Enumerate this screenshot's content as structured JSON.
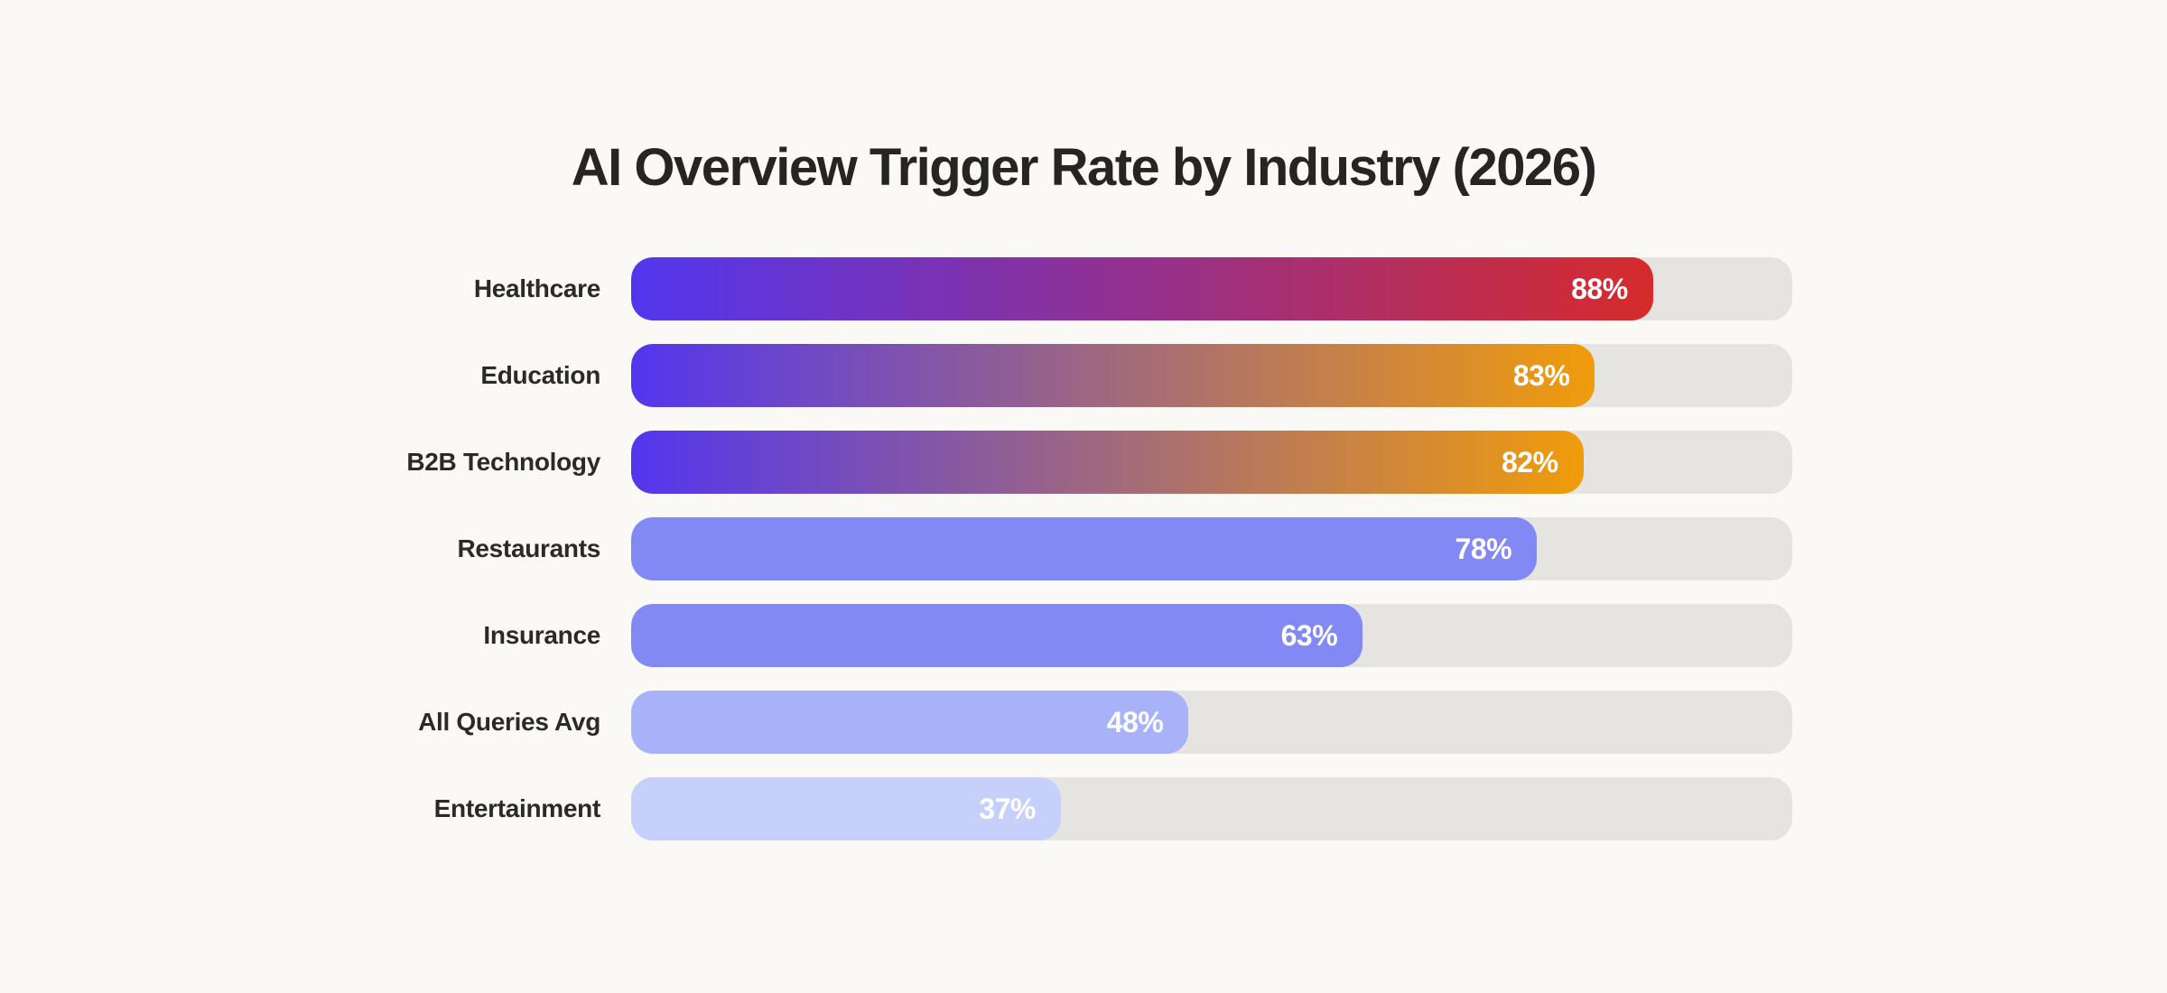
{
  "page": {
    "background_color": "#faf9f6"
  },
  "chart_data": {
    "type": "bar",
    "orientation": "horizontal",
    "title": "AI Overview Trigger Rate by Industry (2026)",
    "xlabel": "",
    "ylabel": "",
    "xlim": [
      0,
      100
    ],
    "grid": false,
    "legend": false,
    "categories": [
      "Healthcare",
      "Education",
      "B2B Technology",
      "Restaurants",
      "Insurance",
      "All Queries Avg",
      "Entertainment"
    ],
    "values": [
      88,
      83,
      82,
      78,
      63,
      48,
      37
    ],
    "value_labels": [
      "88%",
      "83%",
      "82%",
      "78%",
      "63%",
      "48%",
      "37%"
    ],
    "value_label_color": "#ffffff",
    "track_color": "#e5e4e1",
    "title_color": "#262524",
    "category_label_color": "#2b2a28",
    "bar_fills": [
      {
        "type": "gradient",
        "from": "#5236ef",
        "to": "#d62b2b"
      },
      {
        "type": "gradient",
        "from": "#5236ef",
        "to": "#f09c0b"
      },
      {
        "type": "gradient",
        "from": "#5236ef",
        "to": "#f09c0b"
      },
      {
        "type": "solid",
        "color": "#8289f4"
      },
      {
        "type": "solid",
        "color": "#8289f4"
      },
      {
        "type": "solid",
        "color": "#a7b2f9"
      },
      {
        "type": "solid",
        "color": "#c7d0fb"
      }
    ]
  }
}
